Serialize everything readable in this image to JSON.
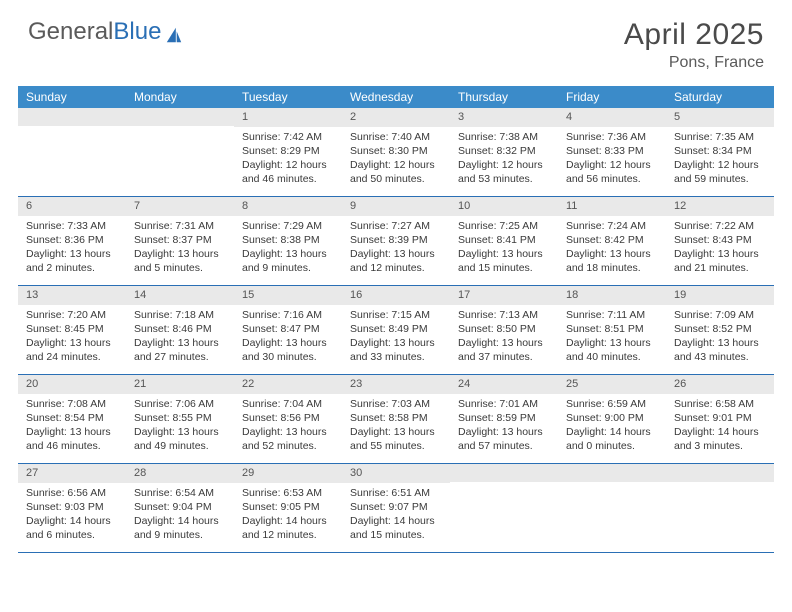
{
  "logo": {
    "text_gray": "General",
    "text_blue": "Blue"
  },
  "title": "April 2025",
  "location": "Pons, France",
  "weekdays": [
    "Sunday",
    "Monday",
    "Tuesday",
    "Wednesday",
    "Thursday",
    "Friday",
    "Saturday"
  ],
  "colors": {
    "header_bar": "#3b8bc9",
    "week_divider": "#2a6fb5",
    "daynum_bg": "#e9e9e9",
    "text": "#3a3a3a",
    "title_text": "#4a4a4a"
  },
  "weeks": [
    [
      {
        "day": "",
        "lines": []
      },
      {
        "day": "",
        "lines": []
      },
      {
        "day": "1",
        "lines": [
          "Sunrise: 7:42 AM",
          "Sunset: 8:29 PM",
          "Daylight: 12 hours",
          "and 46 minutes."
        ]
      },
      {
        "day": "2",
        "lines": [
          "Sunrise: 7:40 AM",
          "Sunset: 8:30 PM",
          "Daylight: 12 hours",
          "and 50 minutes."
        ]
      },
      {
        "day": "3",
        "lines": [
          "Sunrise: 7:38 AM",
          "Sunset: 8:32 PM",
          "Daylight: 12 hours",
          "and 53 minutes."
        ]
      },
      {
        "day": "4",
        "lines": [
          "Sunrise: 7:36 AM",
          "Sunset: 8:33 PM",
          "Daylight: 12 hours",
          "and 56 minutes."
        ]
      },
      {
        "day": "5",
        "lines": [
          "Sunrise: 7:35 AM",
          "Sunset: 8:34 PM",
          "Daylight: 12 hours",
          "and 59 minutes."
        ]
      }
    ],
    [
      {
        "day": "6",
        "lines": [
          "Sunrise: 7:33 AM",
          "Sunset: 8:36 PM",
          "Daylight: 13 hours",
          "and 2 minutes."
        ]
      },
      {
        "day": "7",
        "lines": [
          "Sunrise: 7:31 AM",
          "Sunset: 8:37 PM",
          "Daylight: 13 hours",
          "and 5 minutes."
        ]
      },
      {
        "day": "8",
        "lines": [
          "Sunrise: 7:29 AM",
          "Sunset: 8:38 PM",
          "Daylight: 13 hours",
          "and 9 minutes."
        ]
      },
      {
        "day": "9",
        "lines": [
          "Sunrise: 7:27 AM",
          "Sunset: 8:39 PM",
          "Daylight: 13 hours",
          "and 12 minutes."
        ]
      },
      {
        "day": "10",
        "lines": [
          "Sunrise: 7:25 AM",
          "Sunset: 8:41 PM",
          "Daylight: 13 hours",
          "and 15 minutes."
        ]
      },
      {
        "day": "11",
        "lines": [
          "Sunrise: 7:24 AM",
          "Sunset: 8:42 PM",
          "Daylight: 13 hours",
          "and 18 minutes."
        ]
      },
      {
        "day": "12",
        "lines": [
          "Sunrise: 7:22 AM",
          "Sunset: 8:43 PM",
          "Daylight: 13 hours",
          "and 21 minutes."
        ]
      }
    ],
    [
      {
        "day": "13",
        "lines": [
          "Sunrise: 7:20 AM",
          "Sunset: 8:45 PM",
          "Daylight: 13 hours",
          "and 24 minutes."
        ]
      },
      {
        "day": "14",
        "lines": [
          "Sunrise: 7:18 AM",
          "Sunset: 8:46 PM",
          "Daylight: 13 hours",
          "and 27 minutes."
        ]
      },
      {
        "day": "15",
        "lines": [
          "Sunrise: 7:16 AM",
          "Sunset: 8:47 PM",
          "Daylight: 13 hours",
          "and 30 minutes."
        ]
      },
      {
        "day": "16",
        "lines": [
          "Sunrise: 7:15 AM",
          "Sunset: 8:49 PM",
          "Daylight: 13 hours",
          "and 33 minutes."
        ]
      },
      {
        "day": "17",
        "lines": [
          "Sunrise: 7:13 AM",
          "Sunset: 8:50 PM",
          "Daylight: 13 hours",
          "and 37 minutes."
        ]
      },
      {
        "day": "18",
        "lines": [
          "Sunrise: 7:11 AM",
          "Sunset: 8:51 PM",
          "Daylight: 13 hours",
          "and 40 minutes."
        ]
      },
      {
        "day": "19",
        "lines": [
          "Sunrise: 7:09 AM",
          "Sunset: 8:52 PM",
          "Daylight: 13 hours",
          "and 43 minutes."
        ]
      }
    ],
    [
      {
        "day": "20",
        "lines": [
          "Sunrise: 7:08 AM",
          "Sunset: 8:54 PM",
          "Daylight: 13 hours",
          "and 46 minutes."
        ]
      },
      {
        "day": "21",
        "lines": [
          "Sunrise: 7:06 AM",
          "Sunset: 8:55 PM",
          "Daylight: 13 hours",
          "and 49 minutes."
        ]
      },
      {
        "day": "22",
        "lines": [
          "Sunrise: 7:04 AM",
          "Sunset: 8:56 PM",
          "Daylight: 13 hours",
          "and 52 minutes."
        ]
      },
      {
        "day": "23",
        "lines": [
          "Sunrise: 7:03 AM",
          "Sunset: 8:58 PM",
          "Daylight: 13 hours",
          "and 55 minutes."
        ]
      },
      {
        "day": "24",
        "lines": [
          "Sunrise: 7:01 AM",
          "Sunset: 8:59 PM",
          "Daylight: 13 hours",
          "and 57 minutes."
        ]
      },
      {
        "day": "25",
        "lines": [
          "Sunrise: 6:59 AM",
          "Sunset: 9:00 PM",
          "Daylight: 14 hours",
          "and 0 minutes."
        ]
      },
      {
        "day": "26",
        "lines": [
          "Sunrise: 6:58 AM",
          "Sunset: 9:01 PM",
          "Daylight: 14 hours",
          "and 3 minutes."
        ]
      }
    ],
    [
      {
        "day": "27",
        "lines": [
          "Sunrise: 6:56 AM",
          "Sunset: 9:03 PM",
          "Daylight: 14 hours",
          "and 6 minutes."
        ]
      },
      {
        "day": "28",
        "lines": [
          "Sunrise: 6:54 AM",
          "Sunset: 9:04 PM",
          "Daylight: 14 hours",
          "and 9 minutes."
        ]
      },
      {
        "day": "29",
        "lines": [
          "Sunrise: 6:53 AM",
          "Sunset: 9:05 PM",
          "Daylight: 14 hours",
          "and 12 minutes."
        ]
      },
      {
        "day": "30",
        "lines": [
          "Sunrise: 6:51 AM",
          "Sunset: 9:07 PM",
          "Daylight: 14 hours",
          "and 15 minutes."
        ]
      },
      {
        "day": "",
        "lines": []
      },
      {
        "day": "",
        "lines": []
      },
      {
        "day": "",
        "lines": []
      }
    ]
  ]
}
